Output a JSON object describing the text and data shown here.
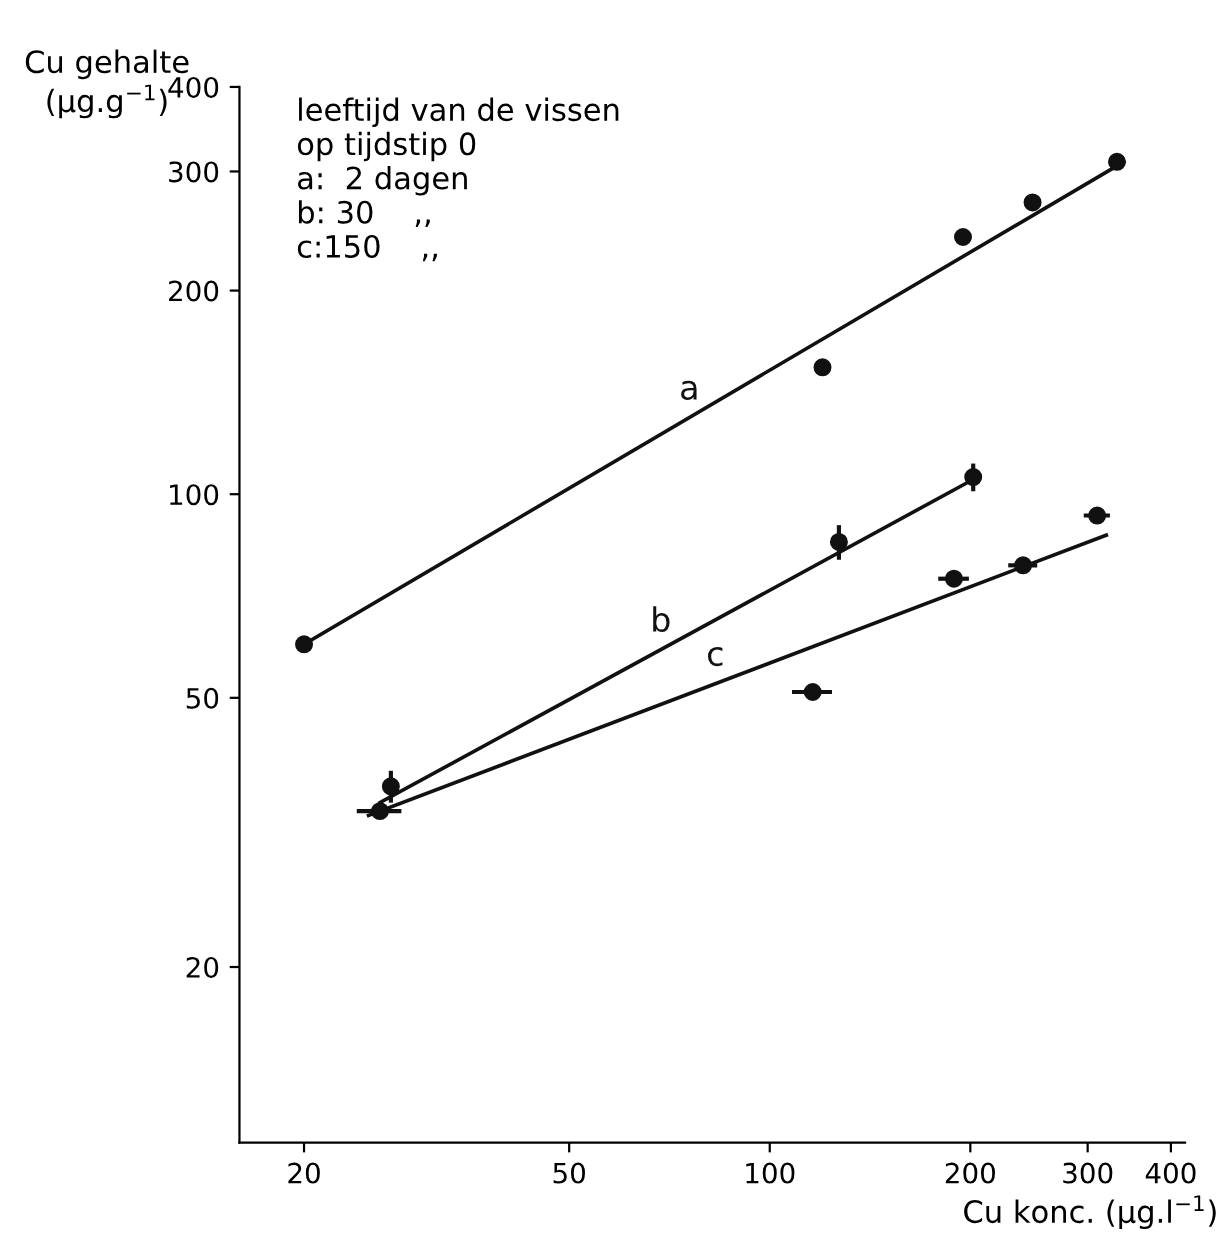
{
  "chart_data": {
    "type": "scatter",
    "xlabel": "Cu konc. (μg.l$^{−1}$)",
    "ylabel": "Cu gehalte\n(μg.g$^{−1}$)",
    "log": "xy",
    "xlim": [
      16,
      420
    ],
    "ylim": [
      11,
      400
    ],
    "xticks": [
      20,
      50,
      100,
      200,
      300,
      400
    ],
    "yticks": [
      20,
      50,
      100,
      200,
      300,
      400
    ],
    "grid": false,
    "series": [
      {
        "color": "#111111",
        "marker": "circle",
        "x": [
          20,
          120,
          195,
          248,
          332
        ],
        "values": [
          60,
          154,
          240,
          270,
          310
        ]
      },
      {
        "color": "#111111",
        "marker": "circle",
        "x": [
          27,
          127,
          202
        ],
        "values": [
          37,
          85,
          106
        ],
        "errors": [
          2,
          5,
          5
        ]
      },
      {
        "color": "#111111",
        "marker": "circle",
        "x": [
          26,
          116,
          189,
          240,
          310
        ],
        "values": [
          34,
          51,
          75,
          78.5,
          93
        ],
        "xerrors": [
          2,
          8,
          10,
          12,
          14
        ]
      },
      {
        "type": "line",
        "name": "a",
        "color": "#111111",
        "marker": "none",
        "x": [
          20,
          340
        ],
        "values": [
          60,
          310
        ]
      },
      {
        "type": "line",
        "name": "b",
        "color": "#111111",
        "marker": "none",
        "x": [
          26,
          205
        ],
        "values": [
          35,
          106
        ]
      },
      {
        "type": "line",
        "name": "c",
        "color": "#111111",
        "marker": "none",
        "x": [
          25,
          320
        ],
        "values": [
          33.5,
          87
        ]
      }
    ],
    "annotations": [
      "leeftijd van de vissen\nop tijdstip 0\na:  2 dagen\nb: 30    ,,\nc:150    ,,"
    ]
  }
}
